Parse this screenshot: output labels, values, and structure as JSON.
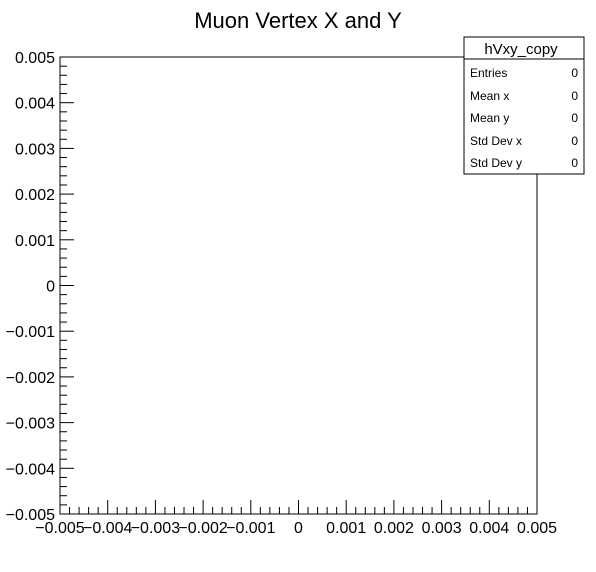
{
  "chart_data": {
    "type": "scatter",
    "title": "Muon Vertex X and Y",
    "xlabel": "",
    "ylabel": "",
    "xlim": [
      -0.005,
      0.005
    ],
    "ylim": [
      -0.005,
      0.005
    ],
    "x": [],
    "y": [],
    "grid": false,
    "x_ticks": [
      -0.005,
      -0.004,
      -0.003,
      -0.002,
      -0.001,
      0,
      0.001,
      0.002,
      0.003,
      0.004,
      0.005
    ],
    "x_tick_labels": [
      "−0.005",
      "−0.004",
      "−0.003",
      "−0.002",
      "−0.001",
      "0",
      "0.001",
      "0.002",
      "0.003",
      "0.004",
      "0.005"
    ],
    "y_ticks": [
      0.005,
      0.004,
      0.003,
      0.002,
      0.001,
      0,
      -0.001,
      -0.002,
      -0.003,
      -0.004,
      -0.005
    ],
    "y_tick_labels": [
      "0.005",
      "0.004",
      "0.003",
      "0.002",
      "0.001",
      "0",
      "−0.001",
      "−0.002",
      "−0.003",
      "−0.004",
      "−0.005"
    ],
    "stats_box": {
      "name": "hVxy_copy",
      "placement": "top-right",
      "rows": [
        {
          "label": "Entries",
          "value": "0"
        },
        {
          "label": "Mean x",
          "value": "0"
        },
        {
          "label": "Mean y",
          "value": "0"
        },
        {
          "label": "Std Dev x",
          "value": "0"
        },
        {
          "label": "Std Dev y",
          "value": "0"
        }
      ]
    }
  }
}
